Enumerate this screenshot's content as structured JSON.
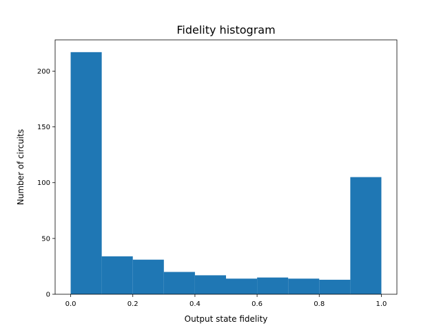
{
  "chart_data": {
    "type": "bar",
    "title": "Fidelity histogram",
    "xlabel": "Output state fidelity",
    "ylabel": "Number of circuits",
    "bins": [
      {
        "start": 0.0,
        "end": 0.1,
        "value": 217
      },
      {
        "start": 0.1,
        "end": 0.2,
        "value": 34
      },
      {
        "start": 0.2,
        "end": 0.3,
        "value": 31
      },
      {
        "start": 0.3,
        "end": 0.4,
        "value": 20
      },
      {
        "start": 0.4,
        "end": 0.5,
        "value": 17
      },
      {
        "start": 0.5,
        "end": 0.6,
        "value": 14
      },
      {
        "start": 0.6,
        "end": 0.7,
        "value": 15
      },
      {
        "start": 0.7,
        "end": 0.8,
        "value": 14
      },
      {
        "start": 0.8,
        "end": 0.9,
        "value": 13
      },
      {
        "start": 0.9,
        "end": 1.0,
        "value": 105
      }
    ],
    "xlim": [
      -0.05,
      1.05
    ],
    "ylim": [
      0,
      228
    ],
    "xticks": [
      "0.0",
      "0.2",
      "0.4",
      "0.6",
      "0.8",
      "1.0"
    ],
    "yticks": [
      "0",
      "50",
      "100",
      "150",
      "200"
    ],
    "bar_color": "#1f77b4",
    "grid": false
  }
}
